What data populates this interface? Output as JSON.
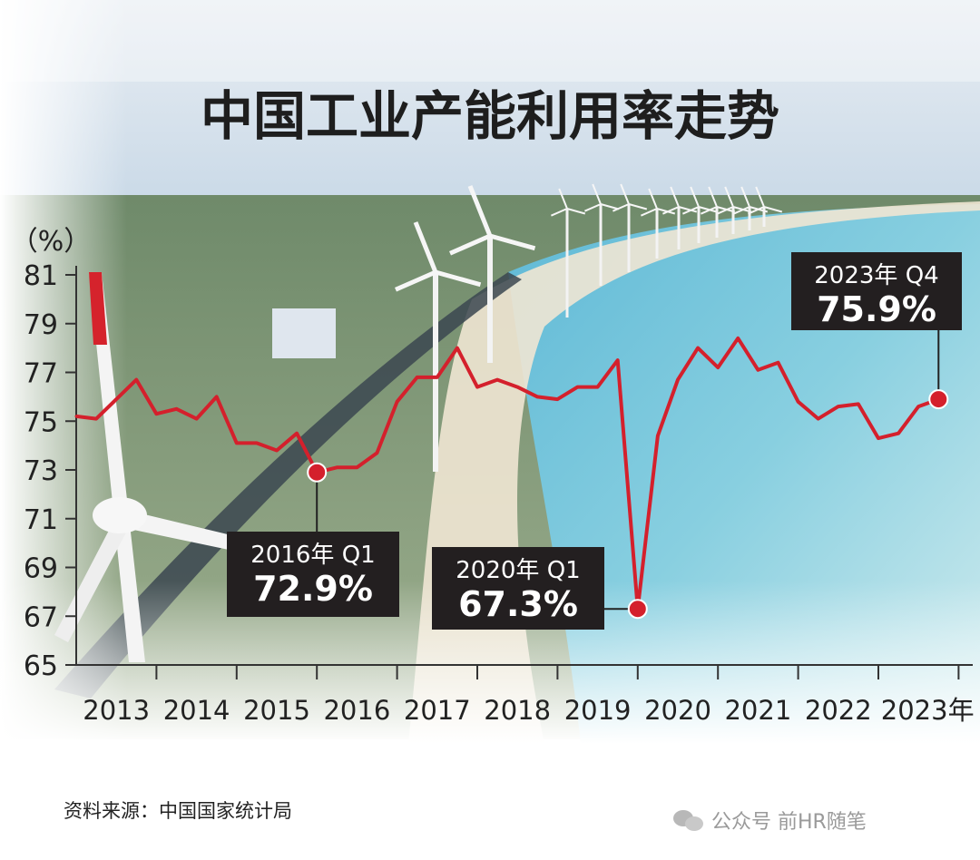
{
  "chart_data": {
    "type": "line",
    "title": "中国工业产能利用率走势",
    "ylabel": "（%）",
    "ylim": [
      65,
      81
    ],
    "yticks": [
      65,
      67,
      69,
      71,
      73,
      75,
      77,
      79,
      81
    ],
    "year_labels": [
      "2013",
      "2014",
      "2015",
      "2016",
      "2017",
      "2018",
      "2019",
      "2020",
      "2021",
      "2022",
      "2023年"
    ],
    "x_start": 2013,
    "series": [
      {
        "color": "#d4202c",
        "values": [
          75.2,
          75.1,
          75.9,
          76.7,
          75.3,
          75.5,
          75.1,
          76.0,
          74.1,
          74.1,
          73.8,
          74.5,
          72.9,
          73.1,
          73.1,
          73.7,
          75.8,
          76.8,
          76.8,
          78.0,
          76.4,
          76.7,
          76.4,
          76.0,
          75.9,
          76.4,
          76.4,
          77.5,
          67.3,
          74.4,
          76.7,
          78.0,
          77.2,
          78.4,
          77.1,
          77.4,
          75.8,
          75.1,
          75.6,
          75.7,
          74.3,
          74.5,
          75.6,
          75.9
        ]
      }
    ],
    "annotations": [
      {
        "label": "2016年 Q1",
        "value": "72.9%",
        "index": 12
      },
      {
        "label": "2020年 Q1",
        "value": "67.3%",
        "index": 28
      },
      {
        "label": "2023年 Q4",
        "value": "75.9%",
        "index": 43
      }
    ]
  },
  "footer": {
    "source": "资料来源：中国国家统计局"
  },
  "watermark": {
    "text": "公众号  前HR随笔"
  },
  "colors": {
    "line": "#d4202c",
    "box": "#231f20",
    "axis": "#333333"
  }
}
